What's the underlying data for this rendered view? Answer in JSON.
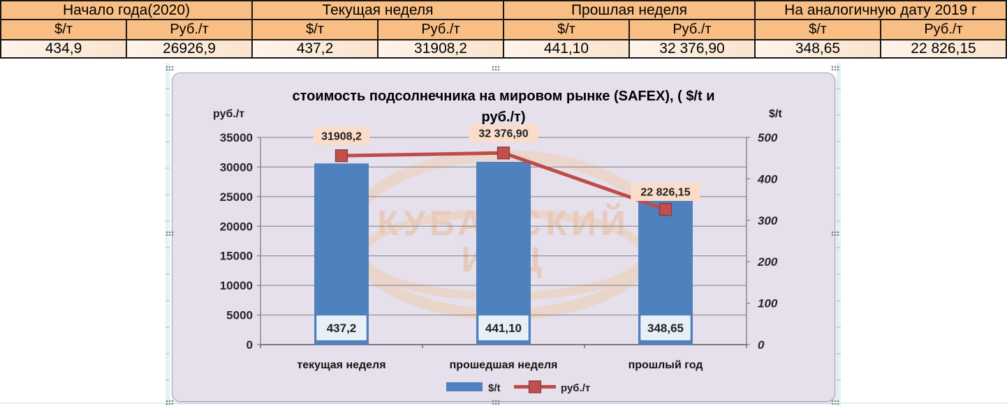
{
  "table": {
    "groups": [
      "Начало года(2020)",
      "Текущая неделя",
      "Прошлая неделя",
      "На аналогичную дату 2019 г"
    ],
    "sub_headers": [
      "$/т",
      "Руб./т",
      "$/т",
      "Руб./т",
      "$/т",
      "Руб./т",
      "$/т",
      "Руб./т"
    ],
    "values": [
      "434,9",
      "26926,9",
      "437,2",
      "31908,2",
      "441,10",
      "32 376,90",
      "348,65",
      "22 826,15"
    ]
  },
  "chart_data": {
    "type": "combo_bar_line",
    "title": "стоимость подсолнечника на мировом рынке (SAFEX), ( $/t и руб./т)",
    "title_line1": "стоимость подсолнечника на мировом рынке (SAFEX), ( $/t и",
    "title_line2": "руб./т)",
    "categories": [
      "текущая неделя",
      "прошедшая неделя",
      "прошлый год"
    ],
    "series": [
      {
        "name": "$/t",
        "type": "bar",
        "axis": "right",
        "color": "#4E81BD",
        "values": [
          437.2,
          441.1,
          348.65
        ],
        "labels": [
          "437,2",
          "441,10",
          "348,65"
        ]
      },
      {
        "name": "руб./т",
        "type": "line",
        "axis": "left",
        "color": "#BE4B48",
        "marker_color": "#C0504D",
        "marker_edge": "#8C3836",
        "values": [
          31908.2,
          32376.9,
          22826.15
        ],
        "labels": [
          "31908,2",
          "32 376,90",
          "22 826,15"
        ]
      }
    ],
    "left_axis": {
      "label": "руб./т",
      "min": 0,
      "max": 35000,
      "step": 5000,
      "tick_labels": [
        "35000",
        "30000",
        "25000",
        "20000",
        "15000",
        "10000",
        "5000",
        "0"
      ]
    },
    "right_axis": {
      "label": "$/t",
      "min": 0,
      "max": 500,
      "step": 100,
      "tick_labels": [
        "500",
        "400",
        "300",
        "200",
        "100",
        "0"
      ]
    },
    "legend": [
      "$/t",
      "руб./т"
    ],
    "legend_position": "bottom",
    "grid": true,
    "watermark_line1": "КУБАНСКИЙ",
    "watermark_line2": "ИКЦ"
  },
  "colors": {
    "bar": "#4E81BD",
    "line": "#BE4B48",
    "table_header_bg": "#F9BE84",
    "table_value_bg": "#FBE7D5",
    "chart_bg": "#E5E0EB",
    "gridline": "#7F7F7F",
    "watermark": "#E9B58D",
    "bar_label_bg": "#E7EFF9",
    "line_label_bg": "#FADCCB"
  }
}
